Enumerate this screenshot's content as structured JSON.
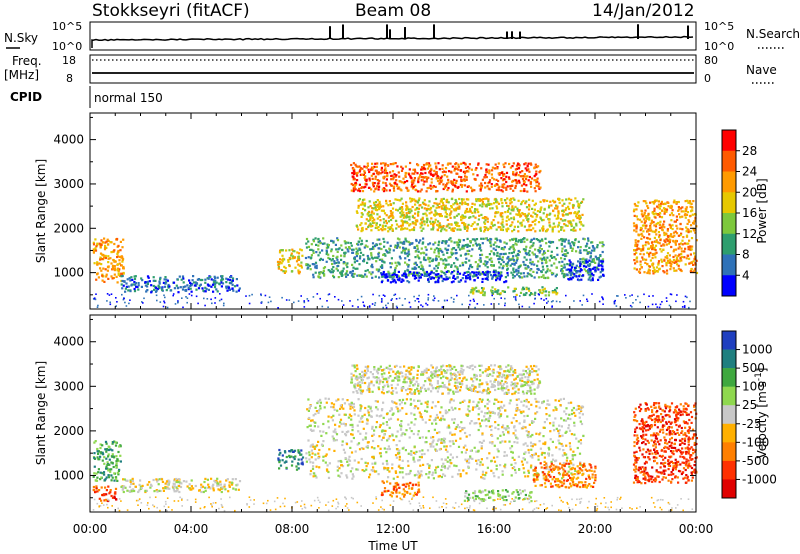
{
  "header": {
    "station": "Stokkseyri (fitACF)",
    "beam": "Beam 08",
    "date": "14/Jan/2012"
  },
  "aux_panels": {
    "nsky_label": "N.Sky",
    "nsearch_label": "N.Search",
    "freq_label_line1": "Freq.",
    "freq_label_line2": "[MHz]",
    "nave_label": "Nave",
    "cpid_label": "CPID",
    "cpid_value": "normal 150",
    "noise_ticks_left": [
      "10^5",
      "10^0"
    ],
    "noise_ticks_right": [
      "10^5",
      "10^0"
    ],
    "freq_ticks": [
      "18",
      "8"
    ],
    "nave_ticks": [
      "80",
      "0"
    ]
  },
  "chart_data": [
    {
      "type": "heatmap",
      "name": "power",
      "ylabel": "Slant Range [km]",
      "xlabel": "",
      "x_ticks": [
        "00:00",
        "04:00",
        "08:00",
        "12:00",
        "16:00",
        "20:00",
        "00:00"
      ],
      "x_range_hours": [
        0,
        24
      ],
      "y_ticks": [
        1000,
        2000,
        3000,
        4000
      ],
      "y_range_km": [
        180,
        4600
      ],
      "colorbar": {
        "label": "Power [dB]",
        "ticks": [
          "28",
          "24",
          "20",
          "16",
          "12",
          "8",
          "4"
        ],
        "colors": [
          "#ff0000",
          "#ff5a00",
          "#ff9a00",
          "#e6c800",
          "#7dc83c",
          "#2e9e6e",
          "#2f72b8",
          "#0000ff"
        ]
      },
      "regions": [
        {
          "t0": 0.1,
          "t1": 1.3,
          "r0": 800,
          "r1": 1800,
          "level": 2
        },
        {
          "t0": 1.2,
          "t1": 5.9,
          "r0": 580,
          "r1": 950,
          "level": 6
        },
        {
          "t0": 7.4,
          "t1": 8.4,
          "r0": 1000,
          "r1": 1550,
          "level": 3
        },
        {
          "t0": 8.5,
          "t1": 20.3,
          "r0": 900,
          "r1": 1800,
          "level": 5
        },
        {
          "t0": 11.5,
          "t1": 16.5,
          "r0": 800,
          "r1": 1050,
          "level": 7
        },
        {
          "t0": 15.0,
          "t1": 18.5,
          "r0": 500,
          "r1": 700,
          "level": 4
        },
        {
          "t0": 18.9,
          "t1": 20.3,
          "r0": 850,
          "r1": 1300,
          "level": 7
        },
        {
          "t0": 10.5,
          "t1": 19.5,
          "r0": 1950,
          "r1": 2700,
          "level": 3
        },
        {
          "t0": 10.3,
          "t1": 17.8,
          "r0": 2850,
          "r1": 3500,
          "level": 1
        },
        {
          "t0": 21.5,
          "t1": 24.0,
          "r0": 1000,
          "r1": 2650,
          "level": 2
        }
      ]
    },
    {
      "type": "heatmap",
      "name": "velocity",
      "ylabel": "Slant Range [km]",
      "xlabel": "Time UT",
      "x_ticks": [
        "00:00",
        "04:00",
        "08:00",
        "12:00",
        "16:00",
        "20:00",
        "00:00"
      ],
      "x_range_hours": [
        0,
        24
      ],
      "y_ticks": [
        1000,
        2000,
        3000,
        4000
      ],
      "y_range_km": [
        180,
        4600
      ],
      "colorbar": {
        "label": "Velocity [m s-1]",
        "ticks": [
          "1000",
          "500",
          "100",
          "25",
          "-25",
          "-100",
          "-500",
          "-1000"
        ],
        "colors": [
          "#1f3fbf",
          "#1f7f7f",
          "#3fa83f",
          "#8fd84f",
          "#c8c8c8",
          "#ffb000",
          "#ff7f00",
          "#ff3000",
          "#e00000"
        ]
      },
      "regions": [
        {
          "t0": 0.1,
          "t1": 1.0,
          "r0": 450,
          "r1": 800,
          "level": 7
        },
        {
          "t0": 0.1,
          "t1": 1.2,
          "r0": 900,
          "r1": 1800,
          "level": 2
        },
        {
          "t0": 1.2,
          "t1": 5.9,
          "r0": 650,
          "r1": 950,
          "level": 4
        },
        {
          "t0": 7.4,
          "t1": 8.4,
          "r0": 1150,
          "r1": 1600,
          "level": 1
        },
        {
          "t0": 8.5,
          "t1": 19.5,
          "r0": 950,
          "r1": 2750,
          "level": 4
        },
        {
          "t0": 10.3,
          "t1": 17.8,
          "r0": 2850,
          "r1": 3500,
          "level": 4
        },
        {
          "t0": 11.5,
          "t1": 13.0,
          "r0": 550,
          "r1": 900,
          "level": 6
        },
        {
          "t0": 14.8,
          "t1": 17.5,
          "r0": 450,
          "r1": 700,
          "level": 3
        },
        {
          "t0": 17.5,
          "t1": 20.0,
          "r0": 750,
          "r1": 1300,
          "level": 6
        },
        {
          "t0": 21.5,
          "t1": 24.0,
          "r0": 850,
          "r1": 2650,
          "level": 7
        }
      ]
    }
  ]
}
